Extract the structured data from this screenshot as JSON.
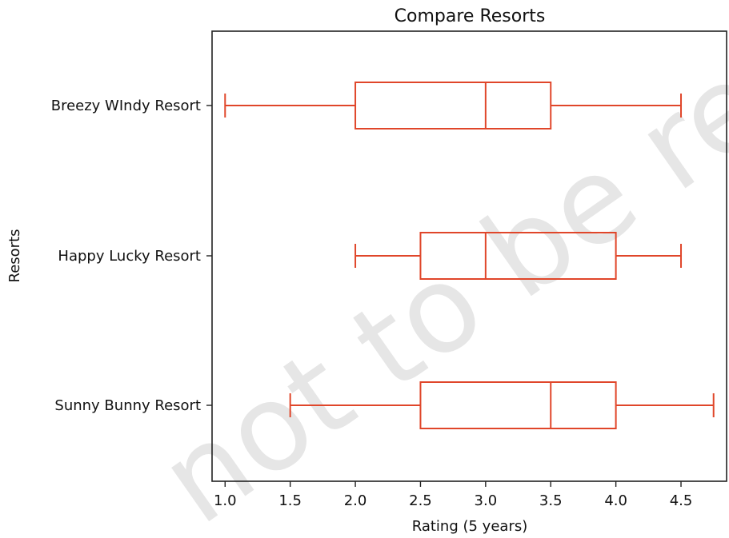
{
  "chart_data": {
    "type": "boxplot",
    "orientation": "horizontal",
    "title": "Compare Resorts",
    "xlabel": "Rating (5 years)",
    "ylabel": "Resorts",
    "xlim": [
      0.9,
      4.85
    ],
    "xticks": [
      1.0,
      1.5,
      2.0,
      2.5,
      3.0,
      3.5,
      4.0,
      4.5
    ],
    "xtick_labels": [
      "1.0",
      "1.5",
      "2.0",
      "2.5",
      "3.0",
      "3.5",
      "4.0",
      "4.5"
    ],
    "color": "#e0462a",
    "grid": false,
    "categories": [
      "Breezy WIndy Resort",
      "Happy Lucky Resort",
      "Sunny Bunny Resort"
    ],
    "series": [
      {
        "category": "Breezy WIndy Resort",
        "whisker_low": 1.0,
        "q1": 2.0,
        "median": 3.0,
        "q3": 3.5,
        "whisker_high": 4.5
      },
      {
        "category": "Happy Lucky Resort",
        "whisker_low": 2.0,
        "q1": 2.5,
        "median": 3.0,
        "q3": 4.0,
        "whisker_high": 4.5
      },
      {
        "category": "Sunny Bunny Resort",
        "whisker_low": 1.5,
        "q1": 2.5,
        "median": 3.5,
        "q3": 4.0,
        "whisker_high": 4.75
      }
    ]
  },
  "watermark_text": "not to be republished"
}
